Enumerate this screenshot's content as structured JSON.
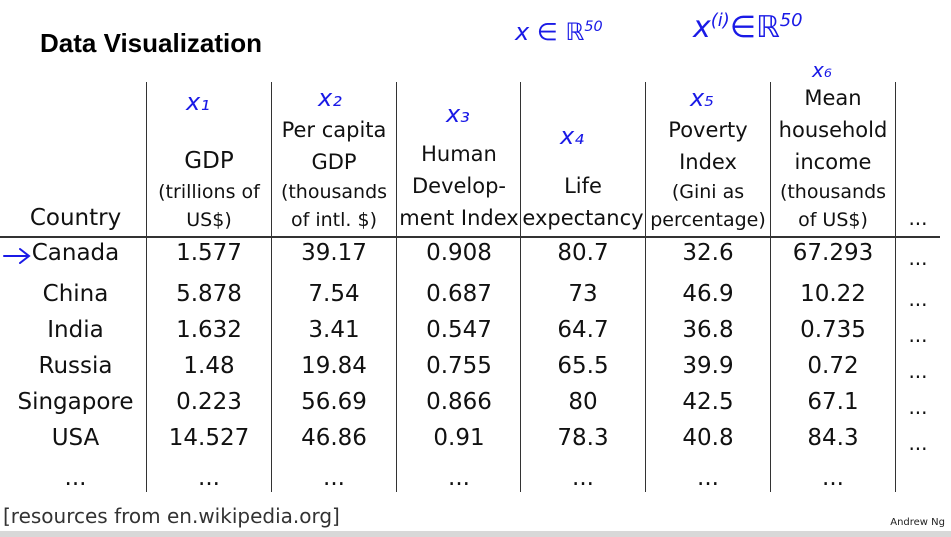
{
  "title": "Data Visualization",
  "annotations": {
    "x_in_r": "x ∈ ℝ",
    "x_in_r_exp": "50",
    "xi_in_r": "x",
    "xi_sup": "(i)",
    "xi_r": "∈ℝ",
    "xi_r_exp": "50",
    "x1": "x₁",
    "x2": "x₂",
    "x3": "x₃",
    "x4": "x₄",
    "x5": "x₅",
    "x6": "x₆"
  },
  "columns": {
    "country": "Country",
    "gdp_title": "GDP",
    "gdp_sub": "(trillions of US$)",
    "pcgdp_title": "Per capita GDP",
    "pcgdp_sub": "(thousands of intl. $)",
    "hdi_title": "Human Develop-ment Index",
    "life_title": "Life expectancy",
    "poverty_title": "Poverty Index",
    "poverty_sub": "(Gini as percentage)",
    "income_title": "Mean household income",
    "income_sub": "(thousands of US$)",
    "more": "..."
  },
  "rows": [
    {
      "country": "Canada",
      "gdp": "1.577",
      "pcgdp": "39.17",
      "hdi": "0.908",
      "life": "80.7",
      "poverty": "32.6",
      "income": "67.293",
      "more": "..."
    },
    {
      "country": "China",
      "gdp": "5.878",
      "pcgdp": "7.54",
      "hdi": "0.687",
      "life": "73",
      "poverty": "46.9",
      "income": "10.22",
      "more": "..."
    },
    {
      "country": "India",
      "gdp": "1.632",
      "pcgdp": "3.41",
      "hdi": "0.547",
      "life": "64.7",
      "poverty": "36.8",
      "income": "0.735",
      "more": "..."
    },
    {
      "country": "Russia",
      "gdp": "1.48",
      "pcgdp": "19.84",
      "hdi": "0.755",
      "life": "65.5",
      "poverty": "39.9",
      "income": "0.72",
      "more": "..."
    },
    {
      "country": "Singapore",
      "gdp": "0.223",
      "pcgdp": "56.69",
      "hdi": "0.866",
      "life": "80",
      "poverty": "42.5",
      "income": "67.1",
      "more": "..."
    },
    {
      "country": "USA",
      "gdp": "14.527",
      "pcgdp": "46.86",
      "hdi": "0.91",
      "life": "78.3",
      "poverty": "40.8",
      "income": "84.3",
      "more": "..."
    },
    {
      "country": "...",
      "gdp": "...",
      "pcgdp": "...",
      "hdi": "...",
      "life": "...",
      "poverty": "...",
      "income": "...",
      "more": ""
    }
  ],
  "source": "[resources from en.wikipedia.org]",
  "author": "Andrew Ng",
  "colors": {
    "ink": "#111111",
    "handwriting": "#1a1ae6"
  }
}
